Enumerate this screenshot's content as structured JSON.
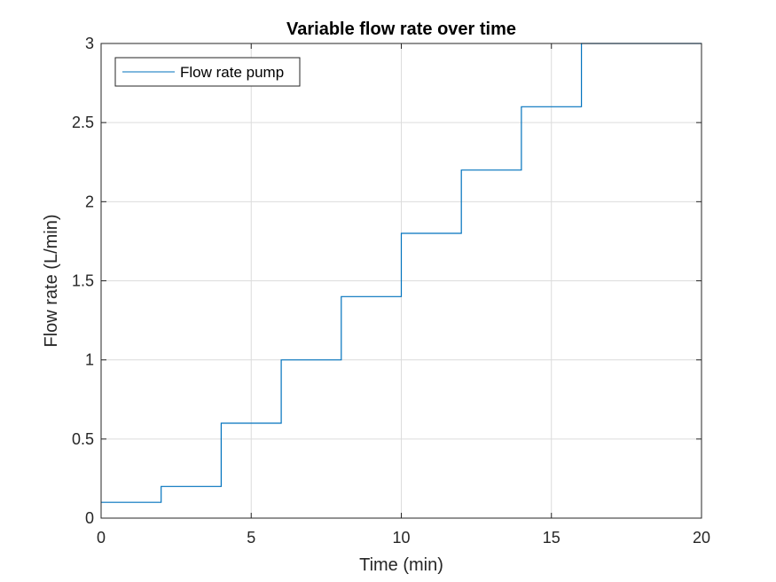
{
  "chart_data": {
    "type": "line",
    "title": "Variable flow rate over time",
    "xlabel": "Time (min)",
    "ylabel": "Flow rate (L/min)",
    "xlim": [
      0,
      20
    ],
    "ylim": [
      0,
      3
    ],
    "xticks": [
      0,
      5,
      10,
      15,
      20
    ],
    "yticks": [
      0,
      0.5,
      1,
      1.5,
      2,
      2.5,
      3
    ],
    "xtick_labels": [
      "0",
      "5",
      "10",
      "15",
      "20"
    ],
    "ytick_labels": [
      "0",
      "0.5",
      "1",
      "1.5",
      "2",
      "2.5",
      "3"
    ],
    "grid": true,
    "legend_position": "top-left",
    "series": [
      {
        "name": "Flow rate pump",
        "color": "#0072BD",
        "style": "step",
        "x": [
          0,
          2,
          4,
          6,
          8,
          10,
          12,
          14,
          16,
          20
        ],
        "y": [
          0.1,
          0.2,
          0.6,
          1.0,
          1.4,
          1.8,
          2.2,
          2.6,
          3.0,
          3.0
        ]
      }
    ]
  }
}
